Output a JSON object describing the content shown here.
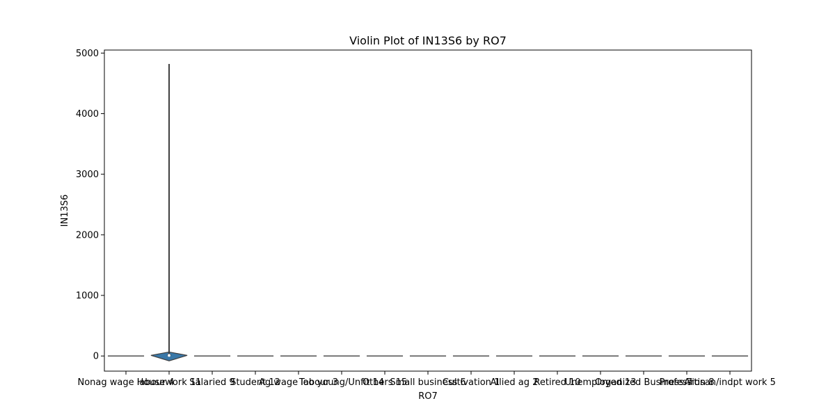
{
  "chart_data": {
    "type": "violin",
    "title": "Violin Plot of IN13S6 by RO7",
    "xlabel": "RO7",
    "ylabel": "IN13S6",
    "ylim": [
      -250,
      5050
    ],
    "yticks": [
      0,
      1000,
      2000,
      3000,
      4000,
      5000
    ],
    "grid": false,
    "violin_color": "#3a78a8",
    "line_color": "#3f3f3f",
    "categories": [
      "Nonag wage labour 4",
      "Housework 11",
      "Salaried 9",
      "Student 12",
      "Ag wage labour 3",
      "Too young/Unfit 14",
      "Others 15",
      "Small business 6",
      "Cultivation 1",
      "Allied ag 2",
      "Retired 10",
      "Unemployed 13",
      "Organized Business 7",
      "Profession 8",
      "Artisan/indpt work 5"
    ],
    "violins": [
      {
        "min": 0,
        "max": 0,
        "q1": 0,
        "median": 0,
        "q3": 0
      },
      {
        "min": 0,
        "max": 4820,
        "q1": 0,
        "median": 10,
        "q3": 30
      },
      {
        "min": 0,
        "max": 0,
        "q1": 0,
        "median": 0,
        "q3": 0
      },
      {
        "min": 0,
        "max": 0,
        "q1": 0,
        "median": 0,
        "q3": 0
      },
      {
        "min": 0,
        "max": 0,
        "q1": 0,
        "median": 0,
        "q3": 0
      },
      {
        "min": 0,
        "max": 0,
        "q1": 0,
        "median": 0,
        "q3": 0
      },
      {
        "min": 0,
        "max": 0,
        "q1": 0,
        "median": 0,
        "q3": 0
      },
      {
        "min": 0,
        "max": 0,
        "q1": 0,
        "median": 0,
        "q3": 0
      },
      {
        "min": 0,
        "max": 0,
        "q1": 0,
        "median": 0,
        "q3": 0
      },
      {
        "min": 0,
        "max": 0,
        "q1": 0,
        "median": 0,
        "q3": 0
      },
      {
        "min": 0,
        "max": 0,
        "q1": 0,
        "median": 0,
        "q3": 0
      },
      {
        "min": 0,
        "max": 0,
        "q1": 0,
        "median": 0,
        "q3": 0
      },
      {
        "min": 0,
        "max": 0,
        "q1": 0,
        "median": 0,
        "q3": 0
      },
      {
        "min": 0,
        "max": 0,
        "q1": 0,
        "median": 0,
        "q3": 0
      },
      {
        "min": 0,
        "max": 0,
        "q1": 0,
        "median": 0,
        "q3": 0
      }
    ]
  }
}
